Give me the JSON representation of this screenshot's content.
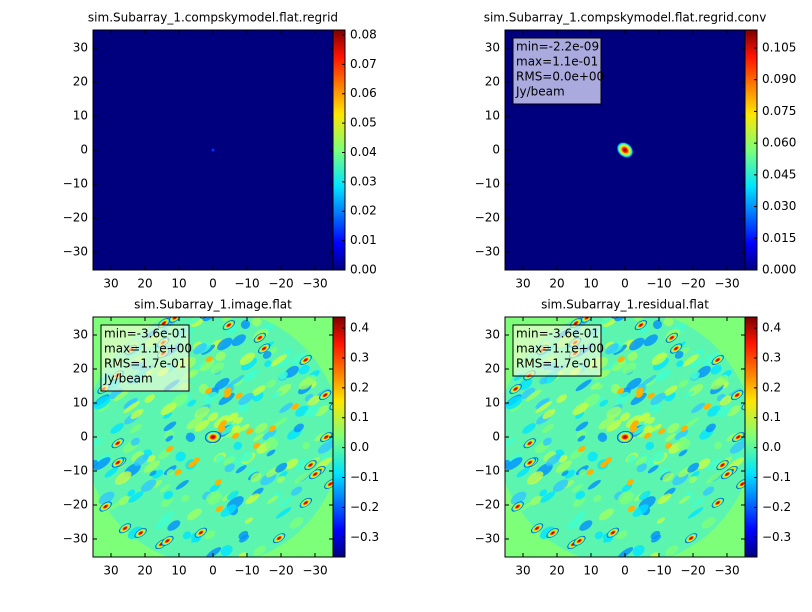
{
  "chart_data": [
    {
      "type": "image",
      "title": "sim.Subarray_1.compskymodel.flat.regrid",
      "colormap": "jet",
      "xlim": [
        35.3,
        -35.3
      ],
      "ylim": [
        -35.3,
        35.3
      ],
      "xticks": [
        30,
        20,
        10,
        0,
        {
          "value": -10,
          "label": "−10"
        },
        {
          "value": -20,
          "label": "−20"
        },
        {
          "value": -30,
          "label": "−30"
        }
      ],
      "yticks": [
        {
          "value": -30,
          "label": "−30"
        },
        {
          "value": -20,
          "label": "−20"
        },
        {
          "value": -10,
          "label": "−10"
        },
        0,
        10,
        20,
        30
      ],
      "clim": [
        0,
        0.0817
      ],
      "cticks": [
        {
          "value": 0,
          "label": "0.00"
        },
        0.01,
        0.02,
        0.03,
        0.04,
        0.05,
        0.06,
        0.07,
        0.08
      ]
    },
    {
      "type": "image",
      "title": "sim.Subarray_1.compskymodel.flat.regrid.conv",
      "colormap": "jet",
      "xlim": [
        35.3,
        -35.3
      ],
      "ylim": [
        -35.3,
        35.3
      ],
      "xticks": [
        30,
        20,
        10,
        0,
        {
          "value": -10,
          "label": "−10"
        },
        {
          "value": -20,
          "label": "−20"
        },
        {
          "value": -30,
          "label": "−30"
        }
      ],
      "yticks": [
        {
          "value": -30,
          "label": "−30"
        },
        {
          "value": -20,
          "label": "−20"
        },
        {
          "value": -10,
          "label": "−10"
        },
        0,
        10,
        20,
        30
      ],
      "clim": [
        0,
        0.1135
      ],
      "cticks": [
        {
          "value": 0,
          "label": "0.000"
        },
        0.015,
        {
          "value": 0.03,
          "label": "0.030"
        },
        0.045,
        {
          "value": 0.06,
          "label": "0.060"
        },
        0.075,
        {
          "value": 0.09,
          "label": "0.090"
        },
        0.105
      ],
      "stats": [
        "min=-2.2e-09",
        "max=1.1e-01",
        "RMS=0.0e+00",
        "Jy/beam"
      ]
    },
    {
      "type": "image",
      "title": "sim.Subarray_1.image.flat",
      "colormap": "jet",
      "xlim": [
        35.3,
        -35.3
      ],
      "ylim": [
        -35.3,
        35.3
      ],
      "xticks": [
        30,
        20,
        10,
        0,
        {
          "value": -10,
          "label": "−10"
        },
        {
          "value": -20,
          "label": "−20"
        },
        {
          "value": -30,
          "label": "−30"
        }
      ],
      "yticks": [
        {
          "value": -30,
          "label": "−30"
        },
        {
          "value": -20,
          "label": "−20"
        },
        {
          "value": -10,
          "label": "−10"
        },
        0,
        10,
        20,
        30
      ],
      "clim": [
        -0.366,
        0.437
      ],
      "cticks": [
        {
          "value": -0.3,
          "label": "−0.3"
        },
        {
          "value": -0.2,
          "label": "−0.2"
        },
        {
          "value": -0.1,
          "label": "−0.1"
        },
        {
          "value": 0,
          "label": "0.0"
        },
        0.1,
        0.2,
        0.3,
        0.4
      ],
      "stats": [
        "min=-3.6e-01",
        "max=1.1e+00",
        "RMS=1.7e-01",
        "Jy/beam"
      ]
    },
    {
      "type": "image",
      "title": "sim.Subarray_1.residual.flat",
      "colormap": "jet",
      "xlim": [
        35.3,
        -35.3
      ],
      "ylim": [
        -35.3,
        35.3
      ],
      "xticks": [
        30,
        20,
        10,
        0,
        {
          "value": -10,
          "label": "−10"
        },
        {
          "value": -20,
          "label": "−20"
        },
        {
          "value": -30,
          "label": "−30"
        }
      ],
      "yticks": [
        {
          "value": -30,
          "label": "−30"
        },
        {
          "value": -20,
          "label": "−20"
        },
        {
          "value": -10,
          "label": "−10"
        },
        0,
        10,
        20,
        30
      ],
      "clim": [
        -0.366,
        0.437
      ],
      "cticks": [
        {
          "value": -0.3,
          "label": "−0.3"
        },
        {
          "value": -0.2,
          "label": "−0.2"
        },
        {
          "value": -0.1,
          "label": "−0.1"
        },
        {
          "value": 0,
          "label": "0.0"
        },
        0.1,
        0.2,
        0.3,
        0.4
      ],
      "stats": [
        "min=-3.6e-01",
        "max=1.1e+00",
        "RMS=1.7e-01"
      ]
    }
  ]
}
